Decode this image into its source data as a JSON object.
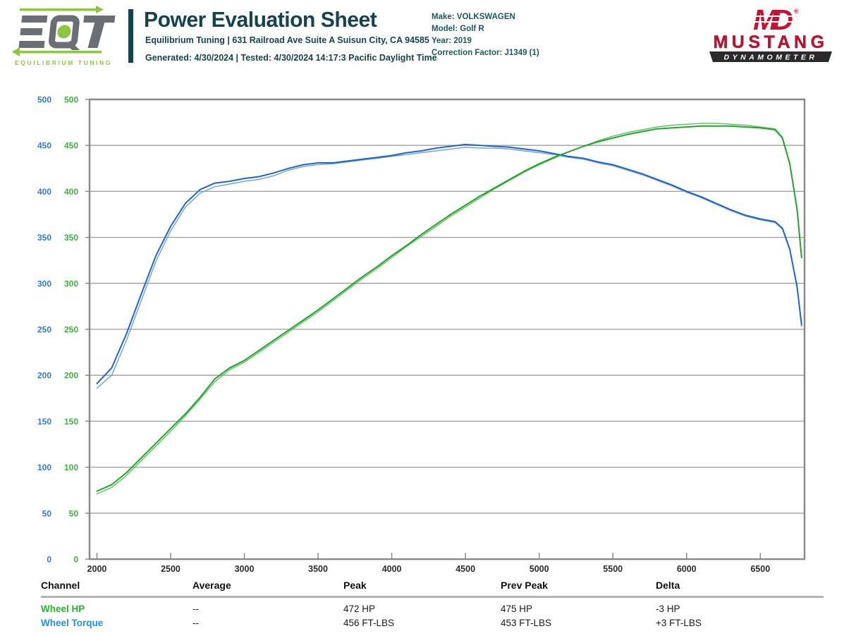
{
  "header": {
    "title": "Power Evaluation Sheet",
    "address_line": "Equilibrium Tuning | 631 Railroad Ave Suite A Suisun City, CA 94585",
    "generated_line": "Generated: 4/30/2024 | Tested: 4/30/2024 14:17:3 Pacific Daylight Time",
    "eqt_logo": {
      "monogram": "EQT",
      "tagline": "EQUILIBRIUM TUNING"
    },
    "vehicle": {
      "lines": [
        "Make: VOLKSWAGEN",
        "Model: Golf R",
        "Year: 2019",
        "Correction Factor: J1349 (1)"
      ]
    },
    "dyno_logo": {
      "monogram": "MD",
      "registered": "®",
      "name": "MUSTANG",
      "sub": "DYNAMOMETER"
    }
  },
  "colors": {
    "teal": "#15434F",
    "eqt_gray": "#696F74",
    "eqt_green": "#8DC63F",
    "md_red": "#C41230",
    "banner_dark": "#2A2A2A",
    "grid": "#9C9C9C",
    "axis_border": "#8A8A8A",
    "axis_label_blue": "#2F7BDB",
    "axis_label_green": "#3CB43C",
    "x_label": "#2B2B2B",
    "hp_green": "#22A52C",
    "hp_green_prev": "#5FBE5F",
    "tq_blue": "#2065C9",
    "tq_blue_prev": "#6F9FE0",
    "table_green": "#24B52B",
    "table_blue": "#1E8EF5"
  },
  "chart_data": {
    "type": "line",
    "title": "",
    "xlabel": "",
    "ylabel": "",
    "grid": true,
    "legend_position": "none",
    "x_range": [
      1950,
      6800
    ],
    "y_range": [
      0,
      500
    ],
    "x_ticks": [
      2000,
      2500,
      3000,
      3500,
      4000,
      4500,
      5000,
      5500,
      6000,
      6500
    ],
    "y_ticks": [
      0,
      50,
      100,
      150,
      200,
      250,
      300,
      350,
      400,
      450,
      500
    ],
    "rpm": [
      2000,
      2100,
      2200,
      2300,
      2400,
      2500,
      2600,
      2700,
      2800,
      2900,
      3000,
      3100,
      3200,
      3300,
      3400,
      3500,
      3600,
      3700,
      3800,
      3900,
      4000,
      4100,
      4200,
      4300,
      4400,
      4500,
      4600,
      4700,
      4800,
      4900,
      5000,
      5100,
      5200,
      5300,
      5400,
      5500,
      5600,
      5700,
      5800,
      5900,
      6000,
      6100,
      6200,
      6300,
      6400,
      6500,
      6600,
      6650,
      6700,
      6750,
      6780
    ],
    "series": [
      {
        "name": "Wheel Torque (prev)",
        "unit": "FT-LBS",
        "color_key": "tq_blue_prev",
        "width": 1.4,
        "values": [
          186,
          200,
          238,
          281,
          324,
          357,
          383,
          398,
          405,
          408,
          411,
          413,
          417,
          423,
          427,
          429,
          430,
          432,
          434,
          436,
          438,
          440,
          442,
          444,
          446,
          448,
          447,
          447,
          446,
          444,
          442,
          440,
          437,
          435,
          431,
          428,
          423,
          418,
          412,
          406,
          399,
          393,
          386,
          379,
          373,
          369,
          366,
          359,
          336,
          295,
          253
        ]
      },
      {
        "name": "Wheel Torque",
        "unit": "FT-LBS",
        "color_key": "tq_blue",
        "width": 2,
        "values": [
          191,
          208,
          245,
          288,
          330,
          362,
          387,
          402,
          409,
          411,
          414,
          416,
          420,
          425,
          429,
          431,
          431,
          433,
          435,
          437,
          439,
          442,
          444,
          447,
          449,
          451,
          450,
          449,
          448,
          446,
          444,
          441,
          438,
          436,
          432,
          429,
          424,
          419,
          413,
          407,
          400,
          394,
          387,
          380,
          374,
          370,
          367,
          360,
          337,
          296,
          255
        ]
      },
      {
        "name": "Wheel HP (prev)",
        "unit": "HP",
        "color_key": "hp_green_prev",
        "width": 1.4,
        "values": [
          71,
          78,
          91,
          107,
          123,
          139,
          156,
          174,
          193,
          206,
          214,
          225,
          236,
          247,
          258,
          269,
          281,
          293,
          305,
          316,
          328,
          340,
          351,
          362,
          373,
          383,
          393,
          403,
          412,
          421,
          429,
          436,
          443,
          449,
          455,
          460,
          464,
          467,
          470,
          472,
          473,
          474,
          474,
          473,
          472,
          470,
          468,
          459,
          431,
          381,
          330
        ]
      },
      {
        "name": "Wheel HP",
        "unit": "HP",
        "color_key": "hp_green",
        "width": 2,
        "values": [
          74,
          81,
          94,
          110,
          126,
          142,
          158,
          176,
          196,
          208,
          216,
          227,
          238,
          249,
          260,
          271,
          283,
          295,
          307,
          318,
          330,
          341,
          353,
          364,
          375,
          385,
          395,
          404,
          413,
          422,
          430,
          437,
          443,
          449,
          454,
          458,
          462,
          465,
          468,
          469,
          470,
          471,
          471,
          471,
          470,
          469,
          467,
          458,
          430,
          380,
          328
        ]
      }
    ]
  },
  "table": {
    "headers": [
      "Channel",
      "Average",
      "Peak",
      "Prev Peak",
      "Delta"
    ],
    "rows": [
      {
        "channel": "Wheel HP",
        "average": "--",
        "peak": "472 HP",
        "prev_peak": "475 HP",
        "delta": "-3 HP"
      },
      {
        "channel": "Wheel Torque",
        "average": "--",
        "peak": "456 FT-LBS",
        "prev_peak": "453 FT-LBS",
        "delta": "+3 FT-LBS"
      }
    ]
  }
}
